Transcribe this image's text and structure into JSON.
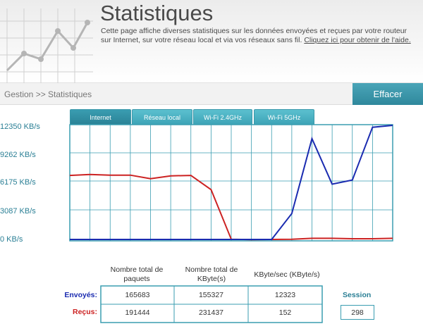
{
  "header": {
    "title": "Statistiques",
    "intro_text": "Cette page affiche diverses statistiques sur les données envoyées et reçues par votre routeur sur Internet, sur votre réseau local et via vos réseaux sans fil.",
    "help_link": "Cliquez ici pour obtenir de l'aide."
  },
  "toolbar": {
    "breadcrumb": "Gestion >> Statistiques",
    "clear_button": "Effacer"
  },
  "tabs": [
    {
      "label": "Internet",
      "active": true
    },
    {
      "label": "Réseau local",
      "active": false
    },
    {
      "label": "Wi-Fi 2.4GHz",
      "active": false
    },
    {
      "label": "Wi-Fi 5GHz",
      "active": false
    }
  ],
  "chart_data": {
    "type": "line",
    "y_ticks": [
      "12350 KB/s",
      "9262 KB/s",
      "6175 KB/s",
      "3087 KB/s",
      "0 KB/s"
    ],
    "ylim": [
      0,
      12350
    ],
    "grid": true,
    "series": [
      {
        "key": "recus",
        "color": "#cc2222",
        "values": [
          7050,
          7150,
          7080,
          7080,
          6700,
          7000,
          7050,
          5500,
          100,
          50,
          80,
          100,
          200,
          200,
          150,
          150,
          200
        ]
      },
      {
        "key": "envoyes",
        "color": "#1a2bb0",
        "values": [
          80,
          80,
          80,
          80,
          80,
          80,
          80,
          80,
          80,
          80,
          80,
          2900,
          11050,
          6100,
          6550,
          12300,
          12500
        ]
      }
    ]
  },
  "stats": {
    "headers": [
      "Nombre total de paquets",
      "Nombre total de KByte(s)",
      "KByte/sec (KByte/s)"
    ],
    "rows": [
      {
        "label": "Envoyés:",
        "color": "#1a2bb0",
        "values": [
          "165683",
          "155327",
          "12323"
        ]
      },
      {
        "label": "Reçus:",
        "color": "#cc2222",
        "values": [
          "191444",
          "231437",
          "152"
        ]
      }
    ],
    "session_label": "Session",
    "session_value": "298"
  },
  "colors": {
    "accent": "#3a9db1",
    "label_blue": "#2a7f95",
    "sent": "#1a2bb0",
    "received": "#cc2222"
  }
}
